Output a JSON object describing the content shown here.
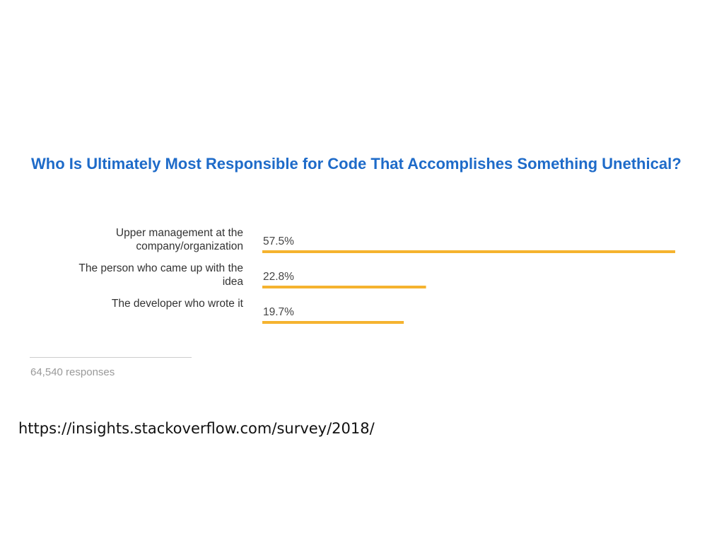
{
  "slide": {
    "source_url": "https://insights.stackoverflow.com/survey/2018/"
  },
  "colors": {
    "title": "#1e6bc9",
    "bar": "#f5b32f",
    "label": "#333333",
    "muted": "#999999"
  },
  "chart_data": {
    "type": "bar",
    "orientation": "horizontal",
    "title": "Who Is Ultimately Most Responsible for Code That Accomplishes Something Unethical?",
    "categories": [
      [
        "Upper management at the",
        "company/organization"
      ],
      [
        "The person who came up with the",
        "idea"
      ],
      [
        "The developer who wrote it"
      ]
    ],
    "values": [
      57.5,
      22.8,
      19.7
    ],
    "value_labels": [
      "57.5%",
      "22.8%",
      "19.7%"
    ],
    "unit": "%",
    "xlim": [
      0,
      57.5
    ],
    "grid": false,
    "legend": "none",
    "footer": "64,540 responses"
  }
}
